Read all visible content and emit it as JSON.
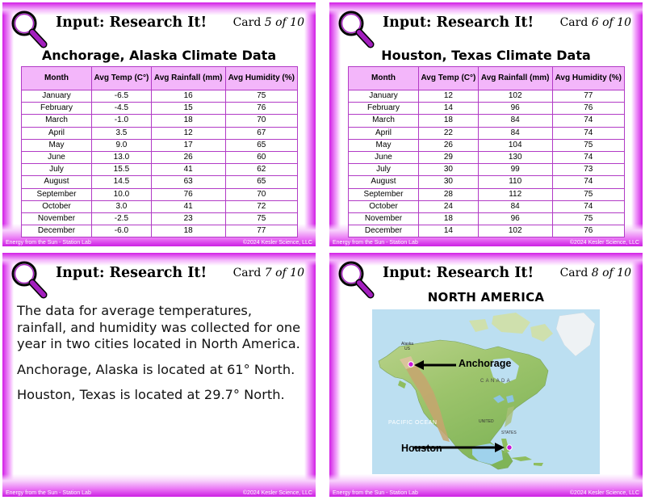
{
  "header": {
    "title": "Input: Research It!"
  },
  "footer": {
    "left": "Energy from the Sun - Station Lab",
    "right": "©2024 Kesler Science, LLC"
  },
  "colors": {
    "accent": "#d21ee6",
    "table_header": "#f3b6fa",
    "table_border": "#b23bc6"
  },
  "icons": {
    "header": "magnifying-glass-icon"
  },
  "cards": {
    "c5": {
      "card_label": "Card",
      "card_num": "5",
      "card_total": "of 10",
      "heading": "Anchorage, Alaska Climate Data",
      "columns": [
        "Month",
        "Avg Temp (C°)",
        "Avg Rainfall (mm)",
        "Avg Humidity (%)"
      ],
      "rows": [
        [
          "January",
          "-6.5",
          "16",
          "75"
        ],
        [
          "February",
          "-4.5",
          "15",
          "76"
        ],
        [
          "March",
          "-1.0",
          "18",
          "70"
        ],
        [
          "April",
          "3.5",
          "12",
          "67"
        ],
        [
          "May",
          "9.0",
          "17",
          "65"
        ],
        [
          "June",
          "13.0",
          "26",
          "60"
        ],
        [
          "July",
          "15.5",
          "41",
          "62"
        ],
        [
          "August",
          "14.5",
          "63",
          "65"
        ],
        [
          "September",
          "10.0",
          "76",
          "70"
        ],
        [
          "October",
          "3.0",
          "41",
          "72"
        ],
        [
          "November",
          "-2.5",
          "23",
          "75"
        ],
        [
          "December",
          "-6.0",
          "18",
          "77"
        ]
      ]
    },
    "c6": {
      "card_label": "Card",
      "card_num": "6",
      "card_total": "of 10",
      "heading": "Houston, Texas Climate Data",
      "columns": [
        "Month",
        "Avg Temp (C°)",
        "Avg Rainfall (mm)",
        "Avg Humidity (%)"
      ],
      "rows": [
        [
          "January",
          "12",
          "102",
          "77"
        ],
        [
          "February",
          "14",
          "96",
          "76"
        ],
        [
          "March",
          "18",
          "84",
          "74"
        ],
        [
          "April",
          "22",
          "84",
          "74"
        ],
        [
          "May",
          "26",
          "104",
          "75"
        ],
        [
          "June",
          "29",
          "130",
          "74"
        ],
        [
          "July",
          "30",
          "99",
          "73"
        ],
        [
          "August",
          "30",
          "110",
          "74"
        ],
        [
          "September",
          "28",
          "112",
          "75"
        ],
        [
          "October",
          "24",
          "84",
          "74"
        ],
        [
          "November",
          "18",
          "96",
          "75"
        ],
        [
          "December",
          "14",
          "102",
          "76"
        ]
      ]
    },
    "c7": {
      "card_label": "Card",
      "card_num": "7",
      "card_total": "of 10",
      "paragraphs": [
        "The data for average temperatures, rainfall, and humidity was collected for one year in two cities located in North America.",
        "Anchorage, Alaska is located at 61° North.",
        "Houston, Texas is located at 29.7° North."
      ]
    },
    "c8": {
      "card_label": "Card",
      "card_num": "8",
      "card_total": "of 10",
      "heading": "NORTH AMERICA",
      "map_labels": {
        "anchorage": "Anchorage",
        "houston": "Houston",
        "alaska": "Alaska",
        "alaska_country": "US",
        "canada": "C A N A D A",
        "pacific": "PACIFIC OCEAN",
        "united_states": "UNITED",
        "states": "STATES"
      }
    }
  }
}
